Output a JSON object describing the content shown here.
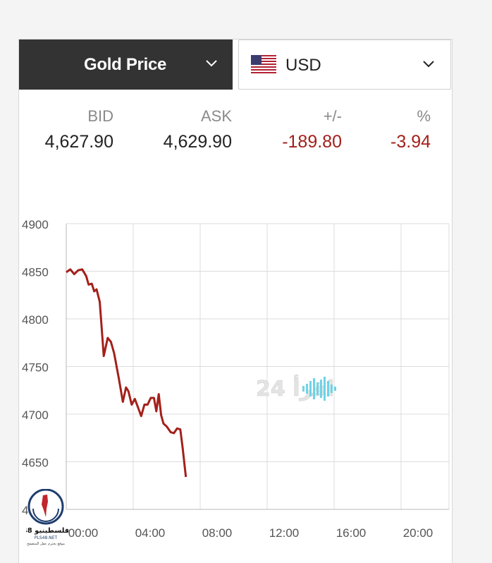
{
  "selectors": {
    "metal_label": "Gold Price",
    "currency_label": "USD"
  },
  "quote": {
    "headers": {
      "bid": "BID",
      "ask": "ASK",
      "change": "+/-",
      "percent": "%"
    },
    "bid": "4,627.90",
    "ask": "4,629.90",
    "change": "-189.80",
    "percent": "-3.94"
  },
  "colors": {
    "line": "#a3201b",
    "negative": "#a3201b",
    "dark_selector": "#333333",
    "watermark": "#6fd3e6"
  },
  "watermark": {
    "text": "24 اقرأ"
  },
  "logo": {
    "name": "فلسطينيو 48",
    "site": "PLS48.NET",
    "tagline": "موقع يحترم عقل المتصفح"
  },
  "chart_data": {
    "type": "line",
    "title": "",
    "xlabel": "",
    "ylabel": "",
    "x_ticks": [
      "00:00",
      "04:00",
      "08:00",
      "12:00",
      "16:00",
      "20:00"
    ],
    "y_ticks": [
      "4650",
      "4700",
      "4750",
      "4800",
      "4850",
      "4900"
    ],
    "y_tick_partial": "4600",
    "xlim": [
      0,
      24
    ],
    "ylim": [
      4600,
      4900
    ],
    "grid": true,
    "series": [
      {
        "name": "",
        "x": [
          0.0,
          0.25,
          0.5,
          0.75,
          1.0,
          1.25,
          1.4,
          1.6,
          1.75,
          1.9,
          2.1,
          2.35,
          2.6,
          2.8,
          3.0,
          3.3,
          3.55,
          3.75,
          3.9,
          4.1,
          4.3,
          4.5,
          4.7,
          4.9,
          5.1,
          5.3,
          5.5,
          5.65,
          5.8,
          5.95,
          6.1,
          6.3,
          6.55,
          6.75,
          6.95,
          7.15,
          7.3,
          7.5
        ],
        "y": [
          4849,
          4852,
          4847,
          4851,
          4852,
          4845,
          4836,
          4837,
          4829,
          4831,
          4818,
          4761,
          4780,
          4776,
          4764,
          4737,
          4713,
          4728,
          4724,
          4710,
          4716,
          4707,
          4698,
          4710,
          4710,
          4717,
          4717,
          4703,
          4721,
          4699,
          4690,
          4687,
          4681,
          4680,
          4685,
          4684,
          4664,
          4634
        ]
      }
    ]
  }
}
